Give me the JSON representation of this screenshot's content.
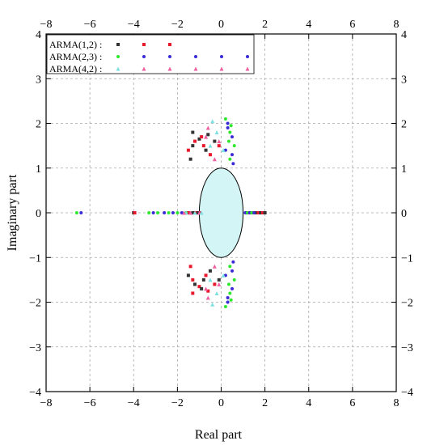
{
  "chart_data": {
    "type": "scatter",
    "xlabel": "Real part",
    "ylabel": "Imaginary part",
    "xlim": [
      -8,
      8
    ],
    "ylim": [
      -4,
      4
    ],
    "xticks": [
      -8,
      -6,
      -4,
      -2,
      0,
      2,
      4,
      6,
      8
    ],
    "yticks": [
      -4,
      -3,
      -2,
      -1,
      0,
      1,
      2,
      3,
      4
    ],
    "x_tick_labels": [
      "−8",
      "−6",
      "−4",
      "−2",
      "0",
      "2",
      "4",
      "6",
      "8"
    ],
    "y_tick_labels": [
      "−4",
      "−3",
      "−2",
      "−1",
      "0",
      "1",
      "2",
      "3",
      "4"
    ],
    "grid": true,
    "legend_position": "top-left",
    "unit_circle": {
      "center": [
        0,
        0
      ],
      "radius": 1,
      "fill": "#d4f5f5"
    },
    "series": [
      {
        "name": "ARMA(1,2) :",
        "marker": "square",
        "colors": [
          "#333333",
          "#e8192c"
        ],
        "points": [
          [
            1.2,
            0
          ],
          [
            1.3,
            0
          ],
          [
            1.4,
            0
          ],
          [
            1.5,
            0
          ],
          [
            1.6,
            0
          ],
          [
            1.7,
            0
          ],
          [
            1.8,
            0
          ],
          [
            1.9,
            0
          ],
          [
            2.0,
            0
          ],
          [
            -1.0,
            0
          ],
          [
            -1.1,
            0
          ],
          [
            -1.2,
            0
          ],
          [
            -1.3,
            0
          ],
          [
            -1.5,
            0
          ],
          [
            -4.0,
            0
          ],
          [
            -3.95,
            0
          ],
          [
            -1.4,
            1.2
          ],
          [
            -1.5,
            1.4
          ],
          [
            -1.3,
            1.5
          ],
          [
            -1.2,
            1.6
          ],
          [
            -1.0,
            1.65
          ],
          [
            -0.8,
            1.5
          ],
          [
            -0.7,
            1.4
          ],
          [
            -0.5,
            1.3
          ],
          [
            -0.3,
            1.6
          ],
          [
            -0.1,
            1.5
          ],
          [
            -1.3,
            1.8
          ],
          [
            -0.9,
            1.7
          ],
          [
            -0.6,
            1.75
          ],
          [
            -1.4,
            -1.2
          ],
          [
            -1.5,
            -1.4
          ],
          [
            -1.3,
            -1.5
          ],
          [
            -1.2,
            -1.6
          ],
          [
            -1.0,
            -1.65
          ],
          [
            -0.8,
            -1.5
          ],
          [
            -0.7,
            -1.4
          ],
          [
            -0.5,
            -1.3
          ],
          [
            -0.3,
            -1.6
          ],
          [
            -0.1,
            -1.5
          ],
          [
            -1.3,
            -1.8
          ],
          [
            -0.9,
            -1.7
          ],
          [
            -0.6,
            -1.75
          ]
        ]
      },
      {
        "name": "ARMA(2,3) :",
        "marker": "circle",
        "colors": [
          "#2ee82e",
          "#3a2bd6"
        ],
        "points": [
          [
            -6.6,
            0
          ],
          [
            -6.4,
            0
          ],
          [
            -3.3,
            0
          ],
          [
            -3.1,
            0
          ],
          [
            -2.9,
            0
          ],
          [
            -2.6,
            0
          ],
          [
            -2.4,
            0
          ],
          [
            -2.2,
            0
          ],
          [
            -2.0,
            0
          ],
          [
            -1.8,
            0
          ],
          [
            -1.6,
            0
          ],
          [
            1.1,
            0
          ],
          [
            1.2,
            0
          ],
          [
            1.3,
            0
          ],
          [
            1.4,
            0
          ],
          [
            1.5,
            0
          ],
          [
            0.2,
            2.1
          ],
          [
            0.3,
            1.9
          ],
          [
            0.4,
            1.8
          ],
          [
            0.5,
            1.7
          ],
          [
            0.6,
            1.5
          ],
          [
            0.5,
            1.3
          ],
          [
            0.4,
            1.2
          ],
          [
            0.55,
            1.1
          ],
          [
            0.35,
            1.6
          ],
          [
            0.2,
            1.4
          ],
          [
            0.45,
            1.95
          ],
          [
            0.3,
            2.0
          ],
          [
            0.2,
            -2.1
          ],
          [
            0.3,
            -1.9
          ],
          [
            0.4,
            -1.8
          ],
          [
            0.5,
            -1.7
          ],
          [
            0.6,
            -1.5
          ],
          [
            0.5,
            -1.3
          ],
          [
            0.4,
            -1.2
          ],
          [
            0.55,
            -1.1
          ],
          [
            0.35,
            -1.6
          ],
          [
            0.2,
            -1.4
          ],
          [
            0.45,
            -1.95
          ],
          [
            0.3,
            -2.0
          ]
        ]
      },
      {
        "name": "ARMA(4,2) :",
        "marker": "triangle",
        "colors": [
          "#7ee0e0",
          "#f060a0"
        ],
        "points": [
          [
            -1.2,
            0
          ],
          [
            -1.0,
            0
          ],
          [
            -0.9,
            0
          ],
          [
            -1.4,
            0
          ],
          [
            -1.6,
            0
          ],
          [
            -1.7,
            0
          ],
          [
            -0.4,
            2.05
          ],
          [
            -0.6,
            1.9
          ],
          [
            -0.2,
            1.8
          ],
          [
            -0.1,
            1.6
          ],
          [
            0.1,
            1.4
          ],
          [
            -0.3,
            1.2
          ],
          [
            -0.5,
            1.5
          ],
          [
            -0.7,
            1.7
          ],
          [
            -0.4,
            -2.05
          ],
          [
            -0.6,
            -1.9
          ],
          [
            -0.2,
            -1.8
          ],
          [
            -0.1,
            -1.6
          ],
          [
            0.1,
            -1.4
          ],
          [
            -0.3,
            -1.2
          ],
          [
            -0.5,
            -1.5
          ],
          [
            -0.7,
            -1.7
          ]
        ]
      }
    ]
  }
}
